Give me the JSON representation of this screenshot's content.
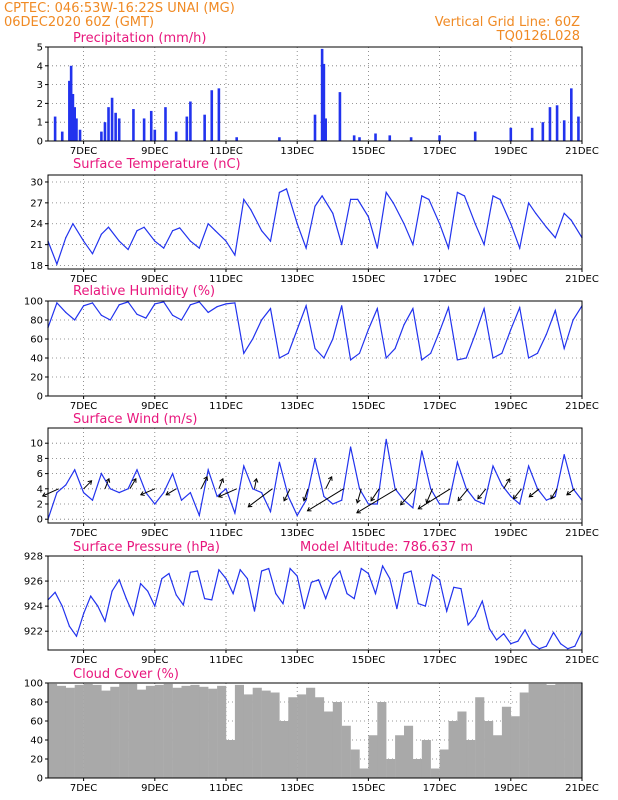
{
  "header": {
    "line1_left": "CPTEC:    046:53W-16:22S    UNAI (MG)",
    "line2_left": "06DEC2020 60Z (GMT)",
    "line1_right": "Vertical Grid Line: 60Z",
    "line2_right": "TQ0126L028"
  },
  "colors": {
    "header": "#f08a24",
    "panel_title": "#e8177d",
    "series": "#2233ee",
    "cloud": "#a9a9a9",
    "wind_arrow": "#000000"
  },
  "x_axis": {
    "range_days": [
      6.0,
      21.0
    ],
    "tick_labels": [
      "7DEC",
      "9DEC",
      "11DEC",
      "13DEC",
      "15DEC",
      "17DEC",
      "19DEC",
      "21DEC"
    ],
    "tick_days": [
      7,
      9,
      11,
      13,
      15,
      17,
      19,
      21
    ]
  },
  "chart_data": [
    {
      "type": "bar",
      "title": "Precipitation  (mm/h)",
      "ylim": [
        0,
        5
      ],
      "yticks": [
        0,
        1,
        2,
        3,
        4,
        5
      ],
      "grid": true,
      "x": [
        6.2,
        6.4,
        6.6,
        6.65,
        6.7,
        6.75,
        6.8,
        6.9,
        7.5,
        7.6,
        7.7,
        7.8,
        7.9,
        8.0,
        8.4,
        8.7,
        8.9,
        9.0,
        9.3,
        9.6,
        9.9,
        10.0,
        10.4,
        10.6,
        10.8,
        11.3,
        12.5,
        13.5,
        13.7,
        13.75,
        13.8,
        14.2,
        14.6,
        14.75,
        15.2,
        15.6,
        16.2,
        17.0,
        18.0,
        19.0,
        19.6,
        19.9,
        20.1,
        20.3,
        20.5,
        20.7,
        20.9
      ],
      "values": [
        1.3,
        0.5,
        3.2,
        4.0,
        2.5,
        1.8,
        1.2,
        0.6,
        0.5,
        1.0,
        1.8,
        2.3,
        1.5,
        1.2,
        1.7,
        1.2,
        1.6,
        0.6,
        1.8,
        0.5,
        1.3,
        2.1,
        1.4,
        2.7,
        2.8,
        0.2,
        0.2,
        1.4,
        4.9,
        4.1,
        1.2,
        2.6,
        0.3,
        0.2,
        0.4,
        0.3,
        0.2,
        0.3,
        0.5,
        0.7,
        0.7,
        1.0,
        1.8,
        1.9,
        1.1,
        2.8,
        1.3
      ]
    },
    {
      "type": "line",
      "title": "Surface Temperature  (nC)",
      "ylim": [
        17.5,
        31
      ],
      "yticks": [
        18,
        21,
        24,
        27,
        30
      ],
      "grid": true,
      "x": [
        6.0,
        6.25,
        6.5,
        6.7,
        7.0,
        7.25,
        7.5,
        7.7,
        8.0,
        8.25,
        8.5,
        8.7,
        9.0,
        9.25,
        9.5,
        9.7,
        10.0,
        10.25,
        10.5,
        10.7,
        11.0,
        11.25,
        11.5,
        11.7,
        12.0,
        12.25,
        12.5,
        12.7,
        13.0,
        13.25,
        13.5,
        13.7,
        14.0,
        14.25,
        14.5,
        14.7,
        15.0,
        15.25,
        15.5,
        15.7,
        16.0,
        16.25,
        16.5,
        16.7,
        17.0,
        17.25,
        17.5,
        17.7,
        18.0,
        18.25,
        18.5,
        18.7,
        19.0,
        19.25,
        19.5,
        19.7,
        20.0,
        20.25,
        20.5,
        20.7,
        21.0
      ],
      "values": [
        21.5,
        18.2,
        22.0,
        24.0,
        21.5,
        19.7,
        22.5,
        23.5,
        21.5,
        20.3,
        23.0,
        23.5,
        21.5,
        20.5,
        23.0,
        23.4,
        21.5,
        20.5,
        24.0,
        23.0,
        21.5,
        19.5,
        27.5,
        26.0,
        23.0,
        21.5,
        28.5,
        29.0,
        24.0,
        20.5,
        26.5,
        28.0,
        25.5,
        21.0,
        27.5,
        27.5,
        25.0,
        20.5,
        28.5,
        27.0,
        24.0,
        21.0,
        28.0,
        27.5,
        24.0,
        20.5,
        28.5,
        28.0,
        24.0,
        21.0,
        28.0,
        27.5,
        24.0,
        20.5,
        27.0,
        25.5,
        23.5,
        22.0,
        25.5,
        24.5,
        22.0
      ]
    },
    {
      "type": "line",
      "title": "Relative Humidity  (%)",
      "ylim": [
        0,
        100
      ],
      "yticks": [
        0,
        20,
        40,
        60,
        80,
        100
      ],
      "grid": true,
      "x": [
        6.0,
        6.25,
        6.5,
        6.75,
        7.0,
        7.25,
        7.5,
        7.75,
        8.0,
        8.25,
        8.5,
        8.75,
        9.0,
        9.25,
        9.5,
        9.75,
        10.0,
        10.25,
        10.5,
        10.75,
        11.0,
        11.25,
        11.5,
        11.75,
        12.0,
        12.25,
        12.5,
        12.75,
        13.0,
        13.25,
        13.5,
        13.75,
        14.0,
        14.25,
        14.5,
        14.75,
        15.0,
        15.25,
        15.5,
        15.75,
        16.0,
        16.25,
        16.5,
        16.75,
        17.0,
        17.25,
        17.5,
        17.75,
        18.0,
        18.25,
        18.5,
        18.75,
        19.0,
        19.25,
        19.5,
        19.75,
        20.0,
        20.25,
        20.5,
        20.75,
        21.0
      ],
      "values": [
        72,
        98,
        88,
        80,
        95,
        98,
        85,
        80,
        96,
        99,
        86,
        82,
        97,
        99,
        85,
        80,
        96,
        99,
        88,
        94,
        97,
        98,
        45,
        60,
        80,
        92,
        40,
        45,
        70,
        95,
        50,
        40,
        60,
        95,
        38,
        45,
        70,
        92,
        40,
        50,
        75,
        92,
        38,
        45,
        68,
        93,
        38,
        40,
        65,
        92,
        40,
        45,
        70,
        93,
        40,
        45,
        65,
        90,
        50,
        80,
        95
      ]
    },
    {
      "type": "line",
      "title": "Surface Wind  (m/s)",
      "ylim": [
        -0.5,
        12
      ],
      "yticks": [
        0,
        2,
        4,
        6,
        8,
        10
      ],
      "grid": true,
      "x": [
        6.0,
        6.25,
        6.5,
        6.75,
        7.0,
        7.25,
        7.5,
        7.75,
        8.0,
        8.25,
        8.5,
        8.75,
        9.0,
        9.25,
        9.5,
        9.75,
        10.0,
        10.25,
        10.5,
        10.75,
        11.0,
        11.25,
        11.5,
        11.75,
        12.0,
        12.25,
        12.5,
        12.75,
        13.0,
        13.25,
        13.5,
        13.75,
        14.0,
        14.25,
        14.5,
        14.75,
        15.0,
        15.25,
        15.5,
        15.75,
        16.0,
        16.25,
        16.5,
        16.75,
        17.0,
        17.25,
        17.5,
        17.75,
        18.0,
        18.25,
        18.5,
        18.75,
        19.0,
        19.25,
        19.5,
        19.75,
        20.0,
        20.25,
        20.5,
        20.75,
        21.0
      ],
      "values": [
        0.0,
        3.5,
        4.5,
        6.5,
        3.5,
        2.5,
        6.0,
        4.0,
        3.5,
        4.0,
        6.5,
        3.5,
        2.0,
        3.5,
        6.0,
        2.5,
        3.5,
        0.5,
        6.5,
        3.0,
        4.0,
        0.8,
        7.0,
        4.0,
        3.5,
        1.0,
        7.5,
        3.0,
        0.5,
        2.5,
        8.0,
        3.0,
        2.0,
        2.5,
        9.5,
        4.0,
        2.0,
        2.0,
        10.5,
        4.0,
        2.5,
        1.5,
        9.0,
        4.0,
        2.0,
        2.0,
        7.5,
        4.0,
        2.5,
        2.0,
        7.0,
        4.5,
        3.0,
        2.0,
        7.0,
        4.0,
        2.5,
        3.0,
        8.5,
        4.0,
        2.5
      ],
      "wind_vectors": {
        "x": [
          6.3,
          7.0,
          7.6,
          8.3,
          9.0,
          9.6,
          10.3,
          10.8,
          11.3,
          11.8,
          12.3,
          12.8,
          13.3,
          13.8,
          14.3,
          14.8,
          15.3,
          15.8,
          16.3,
          16.8,
          17.3,
          17.8,
          18.3,
          18.8,
          19.3,
          19.8,
          20.3,
          20.8
        ],
        "u": [
          -4.0,
          2.0,
          1.0,
          1.5,
          -3.5,
          -2.5,
          1.5,
          1.0,
          -4.5,
          0.5,
          -6.0,
          -1.5,
          -1.0,
          1.5,
          -9.0,
          -1.0,
          -2.0,
          -10.0,
          -3.5,
          -1.5,
          -8.0,
          -2.5,
          -2.0,
          1.5,
          -2.0,
          -2.5,
          -1.5,
          -2.0
        ],
        "v": [
          -1.8,
          2.0,
          2.5,
          2.5,
          -1.5,
          -1.5,
          3.0,
          2.5,
          -2.0,
          2.5,
          -4.5,
          -3.0,
          -3.0,
          3.0,
          -5.5,
          -3.5,
          -3.0,
          -6.0,
          -4.0,
          -3.5,
          -5.0,
          -3.0,
          -2.5,
          2.5,
          -2.5,
          -2.0,
          -2.5,
          -1.5
        ]
      }
    },
    {
      "type": "line",
      "title": "Surface Pressure  (hPa)",
      "subtitle": "Model Altitude:  786.637  m",
      "ylim": [
        920.5,
        928
      ],
      "yticks": [
        922,
        924,
        926,
        928
      ],
      "grid": true,
      "x": [
        6.0,
        6.2,
        6.4,
        6.6,
        6.8,
        7.0,
        7.2,
        7.4,
        7.6,
        7.8,
        8.0,
        8.2,
        8.4,
        8.6,
        8.8,
        9.0,
        9.2,
        9.4,
        9.6,
        9.8,
        10.0,
        10.2,
        10.4,
        10.6,
        10.8,
        11.0,
        11.2,
        11.4,
        11.6,
        11.8,
        12.0,
        12.2,
        12.4,
        12.6,
        12.8,
        13.0,
        13.2,
        13.4,
        13.6,
        13.8,
        14.0,
        14.2,
        14.4,
        14.6,
        14.8,
        15.0,
        15.2,
        15.4,
        15.6,
        15.8,
        16.0,
        16.2,
        16.4,
        16.6,
        16.8,
        17.0,
        17.2,
        17.4,
        17.6,
        17.8,
        18.0,
        18.2,
        18.4,
        18.6,
        18.8,
        19.0,
        19.2,
        19.4,
        19.6,
        19.8,
        20.0,
        20.2,
        20.4,
        20.6,
        20.8,
        21.0
      ],
      "values": [
        924.5,
        925.1,
        924.0,
        922.4,
        921.6,
        923.4,
        924.8,
        924.0,
        922.8,
        925.2,
        926.1,
        924.6,
        923.3,
        925.8,
        925.2,
        924.0,
        926.2,
        926.6,
        924.9,
        924.1,
        926.7,
        926.8,
        924.6,
        924.5,
        926.9,
        926.2,
        925.0,
        926.9,
        926.2,
        923.6,
        926.8,
        927.0,
        925.0,
        924.2,
        927.0,
        926.4,
        923.8,
        925.9,
        926.1,
        924.6,
        926.2,
        926.8,
        925.0,
        924.6,
        927.0,
        926.6,
        925.0,
        927.2,
        926.2,
        923.8,
        926.6,
        926.8,
        924.2,
        924.0,
        926.5,
        926.1,
        923.6,
        925.5,
        925.4,
        922.5,
        923.2,
        924.4,
        922.2,
        921.3,
        921.8,
        921.0,
        921.2,
        922.1,
        921.0,
        920.6,
        920.8,
        921.9,
        921.0,
        920.6,
        920.8,
        922.0
      ]
    },
    {
      "type": "bar",
      "title": "Cloud Cover  (%)",
      "ylim": [
        0,
        100
      ],
      "yticks": [
        0,
        20,
        40,
        60,
        80,
        100
      ],
      "grid": true,
      "x": [
        6.0,
        6.25,
        6.5,
        6.75,
        7.0,
        7.25,
        7.5,
        7.75,
        8.0,
        8.25,
        8.5,
        8.75,
        9.0,
        9.25,
        9.5,
        9.75,
        10.0,
        10.25,
        10.5,
        10.75,
        11.0,
        11.25,
        11.5,
        11.75,
        12.0,
        12.25,
        12.5,
        12.75,
        13.0,
        13.25,
        13.5,
        13.75,
        14.0,
        14.25,
        14.5,
        14.75,
        15.0,
        15.25,
        15.5,
        15.75,
        16.0,
        16.25,
        16.5,
        16.75,
        17.0,
        17.25,
        17.5,
        17.75,
        18.0,
        18.25,
        18.5,
        18.75,
        19.0,
        19.25,
        19.5,
        19.75,
        20.0,
        20.25,
        20.5,
        20.75
      ],
      "values": [
        99,
        97,
        95,
        98,
        99,
        98,
        92,
        96,
        99,
        99,
        93,
        97,
        98,
        99,
        95,
        97,
        98,
        96,
        94,
        97,
        40,
        98,
        88,
        95,
        92,
        90,
        60,
        85,
        88,
        95,
        85,
        70,
        80,
        55,
        30,
        10,
        45,
        80,
        20,
        45,
        55,
        20,
        40,
        10,
        30,
        60,
        70,
        40,
        85,
        60,
        45,
        75,
        65,
        90,
        99,
        99,
        98,
        99,
        99,
        99
      ]
    }
  ]
}
